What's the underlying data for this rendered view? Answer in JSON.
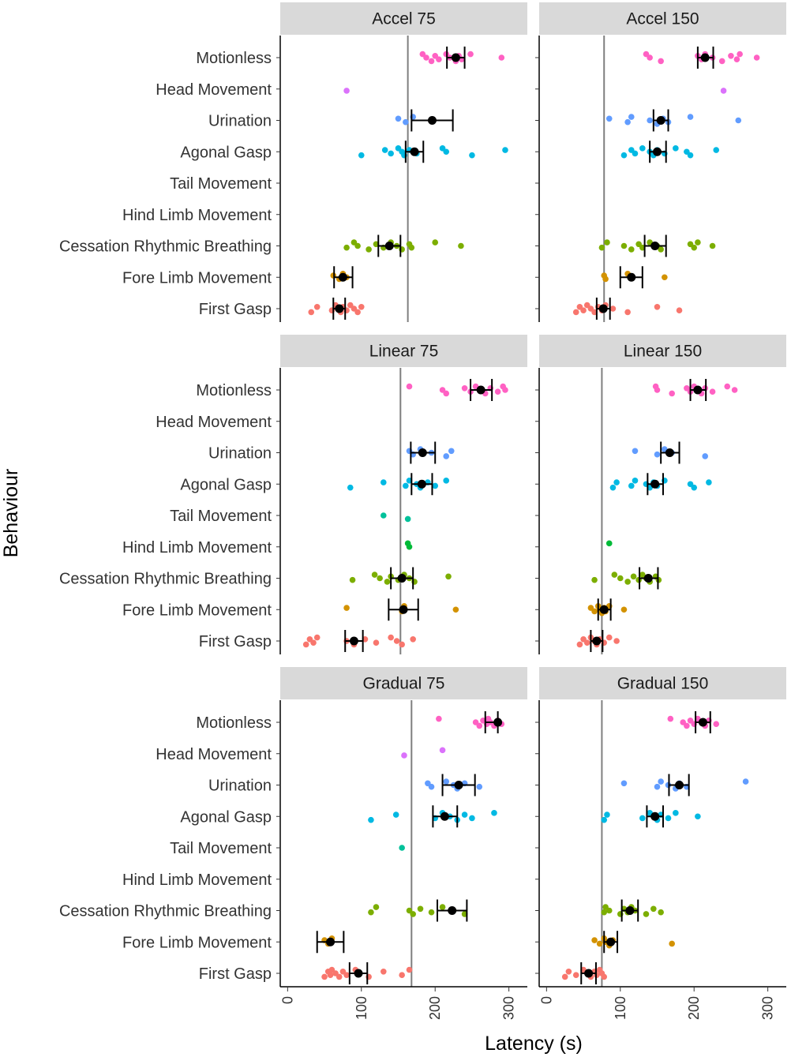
{
  "chart_data": {
    "type": "scatter",
    "xlabel": "Latency (s)",
    "ylabel": "Behaviour",
    "xlim": [
      -10,
      325
    ],
    "xticks": [
      0,
      100,
      200,
      300
    ],
    "categories": [
      "Motionless",
      "Head Movement",
      "Urination",
      "Agonal Gasp",
      "Tail Movement",
      "Hind Limb Movement",
      "Cessation Rhythmic Breathing",
      "Fore Limb Movement",
      "First Gasp"
    ],
    "colors": {
      "Motionless": "#FF61C3",
      "Head Movement": "#DB72FB",
      "Urination": "#619CFF",
      "Agonal Gasp": "#00B9E3",
      "Tail Movement": "#00C19A",
      "Hind Limb Movement": "#00BA38",
      "Cessation Rhythmic Breathing": "#7CAE00",
      "Fore Limb Movement": "#D39200",
      "First Gasp": "#F8766D",
      "mean": "#000000",
      "reference_line": "#7f7f7f",
      "strip": "#d9d9d9"
    },
    "panels": [
      {
        "title": "Accel 75",
        "vline": 163,
        "behaviours": [
          {
            "name": "Motionless",
            "points": [
              183,
              188,
              195,
              200,
              205,
              215,
              220,
              228,
              232,
              236,
              248,
              290
            ],
            "mean": 228,
            "err": [
              216,
              240
            ]
          },
          {
            "name": "Head Movement",
            "points": [
              80
            ],
            "mean": null,
            "err": null
          },
          {
            "name": "Urination",
            "points": [
              150,
              160,
              170,
              196
            ],
            "mean": 196,
            "err": [
              168,
              224
            ]
          },
          {
            "name": "Agonal Gasp",
            "points": [
              100,
              132,
              140,
              150,
              155,
              158,
              165,
              175,
              210,
              215,
              250,
              295
            ],
            "mean": 172,
            "err": [
              160,
              184
            ]
          },
          {
            "name": "Tail Movement",
            "points": [],
            "mean": null,
            "err": null
          },
          {
            "name": "Hind Limb Movement",
            "points": [],
            "mean": null,
            "err": null
          },
          {
            "name": "Cessation Rhythmic Breathing",
            "points": [
              80,
              90,
              95,
              110,
              120,
              130,
              140,
              148,
              155,
              165,
              168,
              200,
              235
            ],
            "mean": 138,
            "err": [
              123,
              153
            ]
          },
          {
            "name": "Fore Limb Movement",
            "points": [
              62,
              70,
              75,
              80
            ],
            "mean": 75,
            "err": [
              63,
              88
            ]
          },
          {
            "name": "First Gasp",
            "points": [
              32,
              40,
              60,
              65,
              70,
              72,
              75,
              80,
              85,
              90,
              95,
              100
            ],
            "mean": 70,
            "err": [
              62,
              78
            ]
          }
        ]
      },
      {
        "title": "Accel 150",
        "vline": 78,
        "behaviours": [
          {
            "name": "Motionless",
            "points": [
              135,
              140,
              155,
              205,
              210,
              215,
              225,
              238,
              250,
              258,
              262,
              285
            ],
            "mean": 215,
            "err": [
              205,
              226
            ]
          },
          {
            "name": "Head Movement",
            "points": [
              240
            ],
            "mean": null,
            "err": null
          },
          {
            "name": "Urination",
            "points": [
              85,
              110,
              115,
              140,
              150,
              158,
              165,
              195,
              260
            ],
            "mean": 155,
            "err": [
              145,
              165
            ]
          },
          {
            "name": "Agonal Gasp",
            "points": [
              105,
              115,
              120,
              130,
              140,
              145,
              150,
              160,
              175,
              190,
              195,
              230
            ],
            "mean": 150,
            "err": [
              140,
              162
            ]
          },
          {
            "name": "Tail Movement",
            "points": [],
            "mean": null,
            "err": null
          },
          {
            "name": "Hind Limb Movement",
            "points": [],
            "mean": null,
            "err": null
          },
          {
            "name": "Cessation Rhythmic Breathing",
            "points": [
              75,
              82,
              105,
              115,
              125,
              130,
              140,
              150,
              155,
              195,
              200,
              205,
              225
            ],
            "mean": 147,
            "err": [
              133,
              162
            ]
          },
          {
            "name": "Fore Limb Movement",
            "points": [
              78,
              80,
              110,
              160
            ],
            "mean": 115,
            "err": [
              100,
              130
            ]
          },
          {
            "name": "First Gasp",
            "points": [
              40,
              45,
              50,
              55,
              60,
              65,
              70,
              75,
              80,
              90,
              110,
              150,
              180
            ],
            "mean": 77,
            "err": [
              68,
              86
            ]
          }
        ]
      },
      {
        "title": "Linear 75",
        "vline": 153,
        "behaviours": [
          {
            "name": "Motionless",
            "points": [
              165,
              210,
              215,
              240,
              248,
              255,
              260,
              268,
              275,
              285,
              292,
              295
            ],
            "mean": 262,
            "err": [
              248,
              277
            ]
          },
          {
            "name": "Head Movement",
            "points": [],
            "mean": null,
            "err": null
          },
          {
            "name": "Urination",
            "points": [
              165,
              170,
              180,
              195,
              215,
              222
            ],
            "mean": 183,
            "err": [
              167,
              200
            ]
          },
          {
            "name": "Agonal Gasp",
            "points": [
              85,
              130,
              160,
              165,
              175,
              180,
              190,
              200,
              215
            ],
            "mean": 182,
            "err": [
              168,
              196
            ]
          },
          {
            "name": "Tail Movement",
            "points": [
              130,
              163
            ],
            "mean": null,
            "err": null
          },
          {
            "name": "Hind Limb Movement",
            "points": [
              163,
              165
            ],
            "mean": null,
            "err": null
          },
          {
            "name": "Cessation Rhythmic Breathing",
            "points": [
              88,
              118,
              125,
              135,
              140,
              150,
              158,
              165,
              172,
              218
            ],
            "mean": 155,
            "err": [
              140,
              170
            ]
          },
          {
            "name": "Fore Limb Movement",
            "points": [
              80,
              155,
              158,
              228
            ],
            "mean": 157,
            "err": [
              137,
              177
            ]
          },
          {
            "name": "First Gasp",
            "points": [
              25,
              30,
              35,
              40,
              80,
              90,
              105,
              120,
              140,
              148,
              155,
              170
            ],
            "mean": 90,
            "err": [
              78,
              102
            ]
          }
        ]
      },
      {
        "title": "Linear 150",
        "vline": 75,
        "behaviours": [
          {
            "name": "Motionless",
            "points": [
              148,
              150,
              170,
              190,
              195,
              200,
              205,
              210,
              215,
              225,
              245,
              255
            ],
            "mean": 205,
            "err": [
              195,
              216
            ]
          },
          {
            "name": "Head Movement",
            "points": [],
            "mean": null,
            "err": null
          },
          {
            "name": "Urination",
            "points": [
              120,
              150,
              160,
              170,
              215
            ],
            "mean": 167,
            "err": [
              155,
              180
            ]
          },
          {
            "name": "Agonal Gasp",
            "points": [
              90,
              95,
              115,
              120,
              135,
              140,
              145,
              150,
              160,
              195,
              200,
              220
            ],
            "mean": 147,
            "err": [
              137,
              158
            ]
          },
          {
            "name": "Tail Movement",
            "points": [],
            "mean": null,
            "err": null
          },
          {
            "name": "Hind Limb Movement",
            "points": [
              85
            ],
            "mean": null,
            "err": null
          },
          {
            "name": "Cessation Rhythmic Breathing",
            "points": [
              65,
              92,
              100,
              110,
              118,
              125,
              130,
              135,
              140,
              148,
              152
            ],
            "mean": 138,
            "err": [
              126,
              151
            ]
          },
          {
            "name": "Fore Limb Movement",
            "points": [
              60,
              65,
              70,
              72,
              75,
              78,
              80,
              85,
              105
            ],
            "mean": 78,
            "err": [
              70,
              87
            ]
          },
          {
            "name": "First Gasp",
            "points": [
              45,
              50,
              55,
              60,
              65,
              68,
              72,
              78,
              85,
              95
            ],
            "mean": 68,
            "err": [
              60,
              76
            ]
          }
        ]
      },
      {
        "title": "Gradual 75",
        "vline": 168,
        "behaviours": [
          {
            "name": "Motionless",
            "points": [
              205,
              255,
              260,
              265,
              270,
              272,
              275,
              280,
              285,
              290
            ],
            "mean": 285,
            "err": [
              268,
              285
            ]
          },
          {
            "name": "Head Movement",
            "points": [
              158,
              210
            ],
            "mean": null,
            "err": null
          },
          {
            "name": "Urination",
            "points": [
              190,
              195,
              215,
              225,
              230,
              240,
              260
            ],
            "mean": 232,
            "err": [
              210,
              254
            ]
          },
          {
            "name": "Agonal Gasp",
            "points": [
              113,
              147,
              200,
              210,
              220,
              230,
              240,
              250,
              280
            ],
            "mean": 213,
            "err": [
              197,
              230
            ]
          },
          {
            "name": "Tail Movement",
            "points": [
              155
            ],
            "mean": null,
            "err": null
          },
          {
            "name": "Hind Limb Movement",
            "points": [],
            "mean": null,
            "err": null
          },
          {
            "name": "Cessation Rhythmic Breathing",
            "points": [
              113,
              120,
              165,
              170,
              180,
              195,
              210,
              225,
              240
            ],
            "mean": 223,
            "err": [
              203,
              243
            ]
          },
          {
            "name": "Fore Limb Movement",
            "points": [
              50,
              55,
              60
            ],
            "mean": 58,
            "err": [
              40,
              76
            ]
          },
          {
            "name": "First Gasp",
            "points": [
              50,
              55,
              58,
              60,
              65,
              70,
              75,
              80,
              92,
              95,
              110,
              130,
              155,
              165
            ],
            "mean": 96,
            "err": [
              84,
              108
            ]
          }
        ]
      },
      {
        "title": "Gradual 150",
        "vline": 75,
        "behaviours": [
          {
            "name": "Motionless",
            "points": [
              168,
              185,
              190,
              195,
              200,
              205,
              210,
              215,
              220,
              230
            ],
            "mean": 212,
            "err": [
              202,
              222
            ]
          },
          {
            "name": "Head Movement",
            "points": [],
            "mean": null,
            "err": null
          },
          {
            "name": "Urination",
            "points": [
              105,
              150,
              155,
              165,
              175,
              180,
              190,
              270
            ],
            "mean": 180,
            "err": [
              166,
              193
            ]
          },
          {
            "name": "Agonal Gasp",
            "points": [
              78,
              82,
              130,
              140,
              145,
              150,
              155,
              165,
              175,
              205
            ],
            "mean": 147,
            "err": [
              136,
              158
            ]
          },
          {
            "name": "Tail Movement",
            "points": [],
            "mean": null,
            "err": null
          },
          {
            "name": "Hind Limb Movement",
            "points": [],
            "mean": null,
            "err": null
          },
          {
            "name": "Cessation Rhythmic Breathing",
            "points": [
              78,
              80,
              85,
              100,
              105,
              110,
              115,
              120,
              135,
              145,
              155
            ],
            "mean": 113,
            "err": [
              102,
              124
            ]
          },
          {
            "name": "Fore Limb Movement",
            "points": [
              65,
              72,
              78,
              80,
              85,
              90,
              170
            ],
            "mean": 87,
            "err": [
              78,
              96
            ]
          },
          {
            "name": "First Gasp",
            "points": [
              25,
              30,
              40,
              50,
              55,
              60,
              65,
              68,
              72,
              75,
              78
            ],
            "mean": 57,
            "err": [
              47,
              67
            ]
          }
        ]
      }
    ]
  }
}
